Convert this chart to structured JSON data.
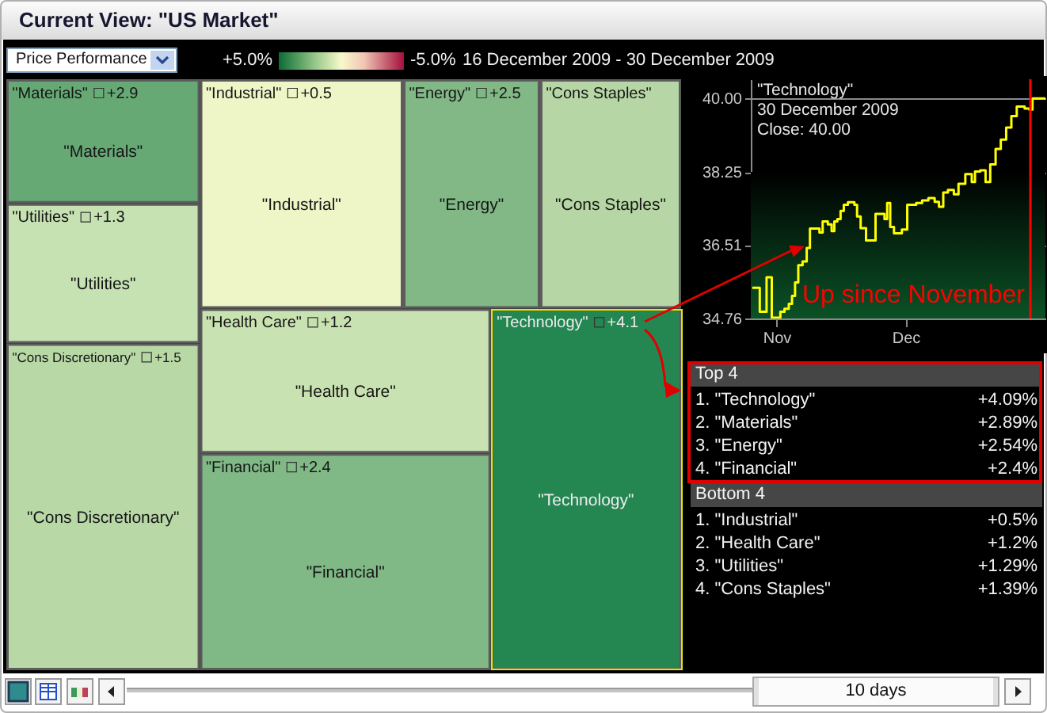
{
  "chart_data": [
    {
      "type": "other",
      "title": "Current View: \"US Market\"",
      "subtitle": "Price Performance",
      "categories": [
        "\"Materials\"",
        "\"Utilities\"",
        "\"Cons Discretionary\"",
        "\"Industrial\"",
        "\"Energy\"",
        "\"Cons Staples\"",
        "\"Health Care\"",
        "\"Financial\"",
        "\"Technology\""
      ],
      "values": [
        2.9,
        1.3,
        1.5,
        0.5,
        2.5,
        null,
        1.2,
        2.4,
        4.1
      ],
      "value_labels": [
        "+2.9",
        "+1.3",
        "+1.5",
        "+0.5",
        "+2.5",
        null,
        "+1.2",
        "+2.4",
        "+4.1"
      ],
      "colors": [
        "#66a974",
        "#c6e1b2",
        "#b8d8a6",
        "#eef6c7",
        "#81b886",
        "#b6d7a5",
        "#c9e2b1",
        "#80b886",
        "#248752"
      ],
      "annotations": [
        "+5.0%",
        "-5.0%",
        "16 December 2009 - 30 December 2009",
        "10 days"
      ]
    },
    {
      "type": "step",
      "x": [
        "2009-10-26T08:00",
        "2009-10-28T02:00",
        "2009-10-29T16:00",
        "2009-10-30T21:00",
        "2009-11-01T21:00",
        "2009-11-02T20:00",
        "2009-11-03T20:00",
        "2009-11-04T14:00",
        "2009-11-05T07:00",
        "2009-11-06T01:00",
        "2009-11-07T01:00",
        "2009-11-08T00:00",
        "2009-11-08T18:00",
        "2009-11-10T23:00",
        "2009-11-11T17:00",
        "2009-11-12T22:00",
        "2009-11-13T19:00",
        "2009-11-14T10:00",
        "2009-11-15T03:00",
        "2009-11-15T21:00",
        "2009-11-16T15:00",
        "2009-11-17T14:00",
        "2009-11-19T02:00",
        "2009-11-19T17:00",
        "2009-11-20T13:00",
        "2009-11-21T19:00",
        "2009-11-24T00:00",
        "2009-11-26T02:00",
        "2009-11-26T17:00",
        "2009-11-27T10:00",
        "2009-11-28T07:00",
        "2009-11-30T03:00",
        "2009-12-01T09:00",
        "2009-12-03T11:00",
        "2009-12-04T20:00",
        "2009-12-06T07:00",
        "2009-12-07T18:00",
        "2009-12-08T18:00",
        "2009-12-09T18:00",
        "2009-12-10T20:00",
        "2009-12-12T05:00",
        "2009-12-13T07:00",
        "2009-12-14T21:00",
        "2009-12-16T09:00",
        "2009-12-17T03:00",
        "2009-12-18T08:00",
        "2009-12-19T14:00",
        "2009-12-20T16:00",
        "2009-12-21T22:00",
        "2009-12-23T03:00",
        "2009-12-24T09:00",
        "2009-12-25T14:00",
        "2009-12-26T20:00",
        "2009-12-28T16:00",
        "2009-12-29T18:00",
        "2009-12-30T12:00",
        "2010-01-02T12:00"
      ],
      "series": [
        {
          "name": "\"Technology\"",
          "color": "#ffff00",
          "values": [
            35.49,
            34.92,
            35.74,
            34.78,
            34.92,
            34.99,
            35.11,
            35.3,
            35.62,
            36.03,
            36.12,
            36.44,
            36.9,
            36.81,
            37.07,
            37.0,
            36.84,
            37.07,
            37.13,
            37.32,
            37.47,
            37.53,
            37.47,
            37.19,
            36.91,
            36.62,
            37.25,
            37.13,
            37.51,
            36.94,
            36.79,
            36.88,
            37.47,
            37.51,
            37.57,
            37.63,
            37.54,
            37.42,
            37.76,
            37.82,
            37.72,
            37.97,
            38.2,
            38.01,
            38.26,
            38.29,
            38.01,
            38.43,
            38.8,
            39.02,
            39.31,
            39.58,
            39.81,
            39.76,
            39.74,
            40.0,
            40.0
          ]
        }
      ],
      "xlim": [
        "2009-10-26",
        "2010-01-02T12:00"
      ],
      "ylim": [
        34.76,
        40.46
      ],
      "xticks": [
        {
          "value": "2009-11-01",
          "label": "Nov"
        },
        {
          "value": "2009-12-01",
          "label": "Dec"
        }
      ],
      "yticks": [
        34.76,
        36.51,
        38.25,
        {
          "value": 40,
          "label": "40.00"
        }
      ],
      "grid": "y",
      "ref_lines": [
        {
          "axis": "x",
          "value": "2009-12-30",
          "color": "#ff0000"
        }
      ],
      "bands": [
        {
          "axis": "y",
          "from": 34.76,
          "to": 38.25,
          "color": "#0b5226"
        }
      ],
      "annotations": [
        "30 December 2009",
        "Close: 40.00",
        "Up since November"
      ]
    },
    {
      "type": "other",
      "title": "Top 4",
      "categories": [
        "1. \"Technology\"",
        "2. \"Materials\"",
        "3. \"Energy\"",
        "4. \"Financial\""
      ],
      "value_labels": [
        "+4.09%",
        "+2.89%",
        "+2.54%",
        "+2.4%"
      ]
    },
    {
      "type": "other",
      "title": "Bottom 4",
      "categories": [
        "1. \"Industrial\"",
        "2. \"Health Care\"",
        "3. \"Utilities\"",
        "4. \"Cons Staples\""
      ],
      "value_labels": [
        "+0.5%",
        "+1.2%",
        "+1.29%",
        "+1.39%"
      ]
    }
  ]
}
